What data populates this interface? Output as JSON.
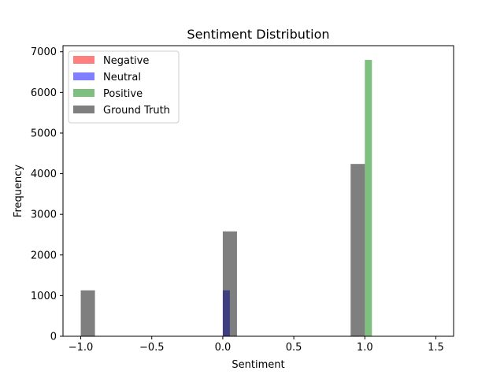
{
  "chart_data": {
    "type": "histogram",
    "title": "Sentiment Distribution",
    "xlabel": "Sentiment",
    "ylabel": "Frequency",
    "xlim": [
      -1.125,
      1.625
    ],
    "ylim": [
      0,
      7150
    ],
    "x_ticks": [
      {
        "value": -1.0,
        "label": "−1.0"
      },
      {
        "value": -0.5,
        "label": "−0.5"
      },
      {
        "value": 0.0,
        "label": "0.0"
      },
      {
        "value": 0.5,
        "label": "0.5"
      },
      {
        "value": 1.0,
        "label": "1.0"
      },
      {
        "value": 1.5,
        "label": "1.5"
      }
    ],
    "y_ticks": [
      {
        "value": 0,
        "label": "0"
      },
      {
        "value": 1000,
        "label": "1000"
      },
      {
        "value": 2000,
        "label": "2000"
      },
      {
        "value": 3000,
        "label": "3000"
      },
      {
        "value": 4000,
        "label": "4000"
      },
      {
        "value": 5000,
        "label": "5000"
      },
      {
        "value": 6000,
        "label": "6000"
      },
      {
        "value": 7000,
        "label": "7000"
      }
    ],
    "grid": false,
    "legend": {
      "position": "top-left"
    },
    "series": [
      {
        "name": "Negative",
        "color": "#ff0000",
        "opacity": 0.5,
        "bins": []
      },
      {
        "name": "Neutral",
        "color": "#0000ff",
        "opacity": 0.5,
        "bins": [
          {
            "x0": 0.0,
            "x1": 0.05,
            "count": 1130
          }
        ]
      },
      {
        "name": "Positive",
        "color": "#008000",
        "opacity": 0.5,
        "bins": [
          {
            "x0": 1.0,
            "x1": 1.05,
            "count": 6800
          }
        ]
      },
      {
        "name": "Ground Truth",
        "color": "#000000",
        "opacity": 0.5,
        "bins": [
          {
            "x0": -1.0,
            "x1": -0.9,
            "count": 1130
          },
          {
            "x0": 0.0,
            "x1": 0.1,
            "count": 2580
          },
          {
            "x0": 0.9,
            "x1": 1.0,
            "count": 4240
          }
        ]
      }
    ]
  }
}
